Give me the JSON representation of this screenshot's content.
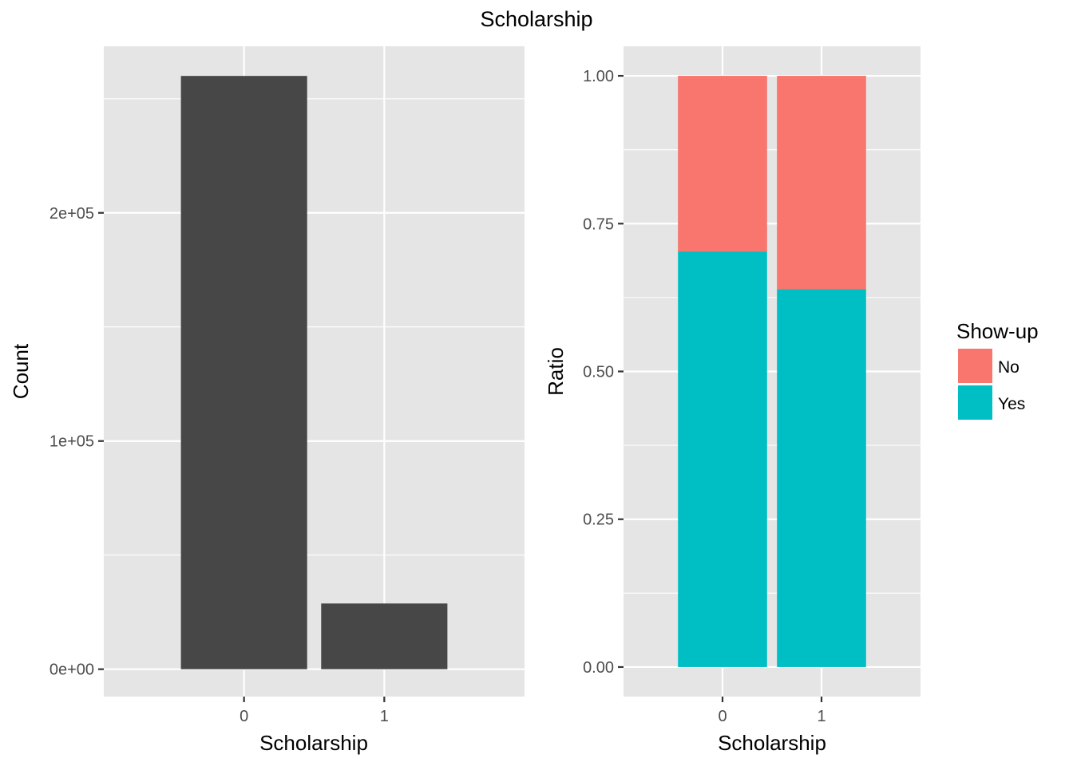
{
  "title": "Scholarship",
  "legend": {
    "title": "Show-up",
    "position": "right",
    "entries": [
      {
        "label": "No",
        "color": "#F8766D"
      },
      {
        "label": "Yes",
        "color": "#00BFC4"
      }
    ]
  },
  "colors": {
    "panel_bg": "#E5E5E5",
    "grid": "#FFFFFF",
    "bar_fill": "#474747",
    "tick_text": "#4D4D4D",
    "tick_mark": "#333333"
  },
  "chart_data": [
    {
      "type": "bar",
      "title": "",
      "xlabel": "Scholarship",
      "ylabel": "Count",
      "categories": [
        "0",
        "1"
      ],
      "values": [
        260000,
        28800
      ],
      "ylim": [
        -12000,
        273000
      ],
      "yticks": [
        {
          "value": 0,
          "label": "0e+00"
        },
        {
          "value": 100000,
          "label": "1e+05"
        },
        {
          "value": 200000,
          "label": "2e+05"
        }
      ],
      "grid": true
    },
    {
      "type": "bar",
      "stacked": true,
      "title": "",
      "xlabel": "Scholarship",
      "ylabel": "Ratio",
      "categories": [
        "0",
        "1"
      ],
      "series": [
        {
          "name": "Yes",
          "values": [
            0.703,
            0.639
          ]
        },
        {
          "name": "No",
          "values": [
            0.297,
            0.361
          ]
        }
      ],
      "ylim": [
        -0.05,
        1.05
      ],
      "yticks": [
        {
          "value": 0.0,
          "label": "0.00"
        },
        {
          "value": 0.25,
          "label": "0.25"
        },
        {
          "value": 0.5,
          "label": "0.50"
        },
        {
          "value": 0.75,
          "label": "0.75"
        },
        {
          "value": 1.0,
          "label": "1.00"
        }
      ],
      "grid": true
    }
  ]
}
